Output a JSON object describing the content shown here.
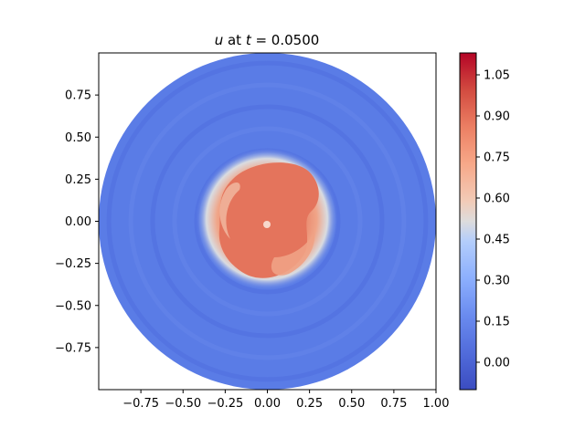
{
  "chart_data": {
    "type": "heatmap",
    "title_var": "u",
    "title_mid": " at ",
    "title_var2": "t",
    "title_value": " = 0.0500",
    "domain": "unit disk",
    "xlim": [
      -1.0,
      1.0
    ],
    "ylim": [
      -1.0,
      1.0
    ],
    "xticks": [
      -0.75,
      -0.5,
      -0.25,
      0.0,
      0.25,
      0.5,
      0.75,
      1.0
    ],
    "xtick_labels": [
      "−0.75",
      "−0.50",
      "−0.25",
      "0.00",
      "0.25",
      "0.50",
      "0.75",
      "1.00"
    ],
    "yticks": [
      0.75,
      0.5,
      0.25,
      0.0,
      -0.25,
      -0.5,
      -0.75
    ],
    "ytick_labels": [
      "0.75",
      "0.50",
      "0.25",
      "0.00",
      "−0.25",
      "−0.50",
      "−0.75"
    ],
    "colorbar": {
      "colormap": "coolwarm",
      "range": [
        -0.1,
        1.13
      ],
      "ticks": [
        1.05,
        0.9,
        0.75,
        0.6,
        0.45,
        0.3,
        0.15,
        0.0
      ],
      "tick_labels": [
        "1.05",
        "0.90",
        "0.75",
        "0.60",
        "0.45",
        "0.30",
        "0.15",
        "0.00"
      ]
    },
    "field_description_values": {
      "background_level": 0.07,
      "peak_level": 0.95,
      "peak_center": [
        0.0,
        0.0
      ],
      "ring_count": 5
    }
  }
}
